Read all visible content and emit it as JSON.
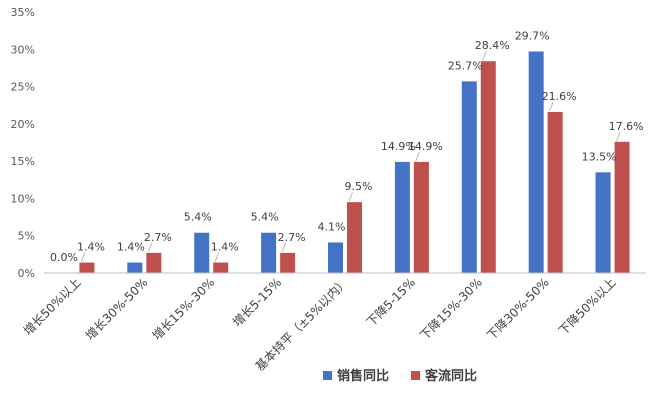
{
  "chart_data": {
    "type": "bar",
    "title": "",
    "xlabel": "",
    "ylabel": "",
    "ylim": [
      0,
      35
    ],
    "yticks": [
      0,
      5,
      10,
      15,
      20,
      25,
      30,
      35
    ],
    "y_tick_suffix": "%",
    "grid": false,
    "legend_position": "bottom-right",
    "categories": [
      "增长50%以上",
      "增长30%-50%",
      "增长15%-30%",
      "增长5-15%",
      "基本持平（±5%以内）",
      "下降5-15%",
      "下降15%-30%",
      "下降30%-50%",
      "下降50%以上"
    ],
    "series": [
      {
        "name": "销售同比",
        "color": "#4472C4",
        "values": [
          0.0,
          1.4,
          5.4,
          5.4,
          4.1,
          14.9,
          25.7,
          29.7,
          13.5
        ],
        "labels": [
          "0.0%",
          "1.4%",
          "5.4%",
          "5.4%",
          "4.1%",
          "14.9%",
          "25.7%",
          "29.7%",
          "13.5%"
        ]
      },
      {
        "name": "客流同比",
        "color": "#C0504D",
        "values": [
          1.4,
          2.7,
          1.4,
          2.7,
          9.5,
          14.9,
          28.4,
          21.6,
          17.6
        ],
        "labels": [
          "1.4%",
          "2.7%",
          "1.4%",
          "2.7%",
          "9.5%",
          "14.9%",
          "28.4%",
          "21.6%",
          "17.6%"
        ]
      }
    ]
  }
}
